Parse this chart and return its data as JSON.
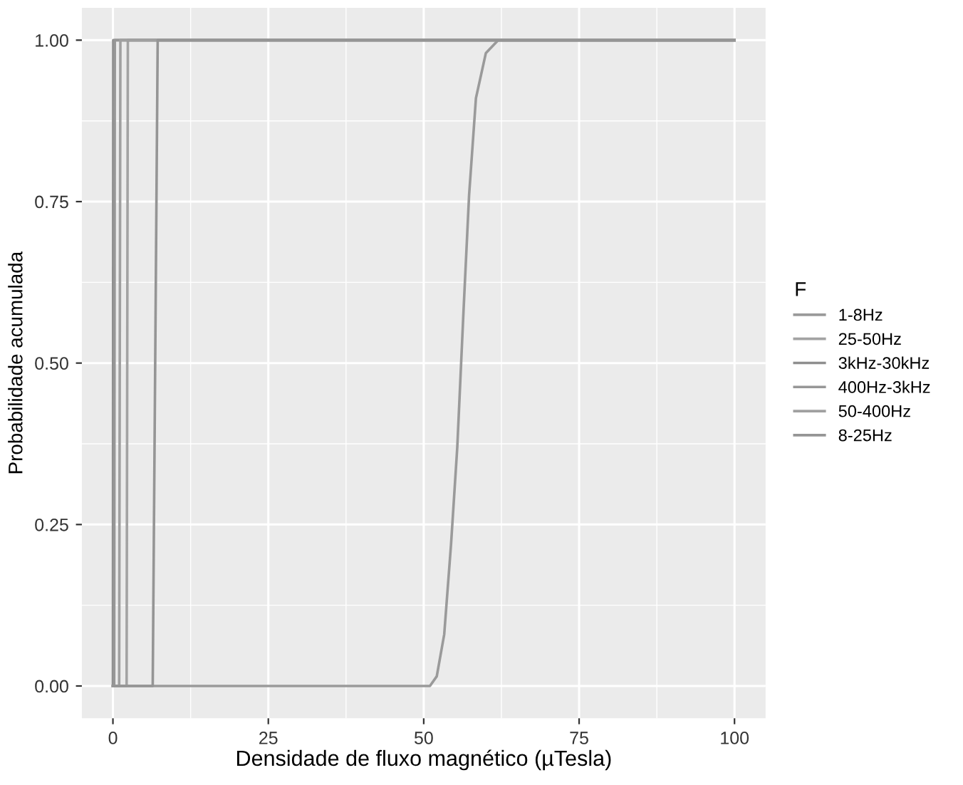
{
  "chart_data": {
    "type": "line",
    "xlabel": "Densidade de fluxo magnético (µTesla)",
    "ylabel": "Probabilidade acumulada",
    "legend_title": "F",
    "xlim": [
      -5,
      105
    ],
    "ylim": [
      -0.05,
      1.05
    ],
    "xticks": [
      0,
      25,
      50,
      75,
      100
    ],
    "yticks": [
      {
        "value": 0,
        "label": "0.00"
      },
      {
        "value": 0.25,
        "label": "0.25"
      },
      {
        "value": 0.5,
        "label": "0.50"
      },
      {
        "value": 0.75,
        "label": "0.75"
      },
      {
        "value": 1,
        "label": "1.00"
      }
    ],
    "grid": true,
    "legend": "right",
    "marker": "none",
    "line_style": "solid",
    "series": [
      {
        "name": "1-8Hz",
        "color": "#9a9a9a",
        "x": [
          0,
          51.0,
          52.1,
          53.3,
          54.4,
          55.4,
          56.4,
          57.3,
          58.4,
          60,
          62,
          100
        ],
        "values": [
          0,
          0,
          0.015,
          0.08,
          0.22,
          0.37,
          0.58,
          0.76,
          0.91,
          0.98,
          1,
          1
        ]
      },
      {
        "name": "25-50Hz",
        "color": "#a3a3a3",
        "x": [
          0,
          2.2,
          2.3,
          2.4,
          100
        ],
        "values": [
          0,
          0,
          0.5,
          1,
          1
        ]
      },
      {
        "name": "3kHz-30kHz",
        "color": "#8f8f8f",
        "x": [
          0,
          0.05,
          100
        ],
        "values": [
          0,
          1,
          1
        ]
      },
      {
        "name": "400Hz-3kHz",
        "color": "#979797",
        "x": [
          0,
          0.2,
          0.3,
          100
        ],
        "values": [
          0,
          0,
          1,
          1
        ]
      },
      {
        "name": "50-400Hz",
        "color": "#a0a0a0",
        "x": [
          0,
          1.0,
          1.2,
          100
        ],
        "values": [
          0,
          0,
          1,
          1
        ]
      },
      {
        "name": "8-25Hz",
        "color": "#959595",
        "x": [
          0,
          6.4,
          6.8,
          7.2,
          100
        ],
        "values": [
          0,
          0,
          0.5,
          1,
          1
        ]
      }
    ]
  }
}
